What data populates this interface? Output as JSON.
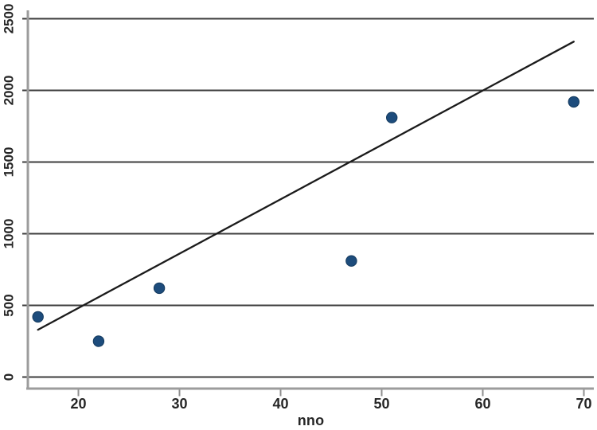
{
  "chart_data": {
    "type": "scatter",
    "title": "",
    "xlabel": "nno",
    "ylabel": "",
    "x_ticks": [
      20,
      30,
      40,
      50,
      60,
      70
    ],
    "y_ticks": [
      0,
      500,
      1000,
      1500,
      2000,
      2500
    ],
    "xlim": [
      15,
      71
    ],
    "ylim": [
      -85,
      2560
    ],
    "grid": "horizontal",
    "legend": "none",
    "points": [
      {
        "x": 16,
        "y": 420
      },
      {
        "x": 22,
        "y": 250
      },
      {
        "x": 28,
        "y": 620
      },
      {
        "x": 47,
        "y": 810
      },
      {
        "x": 51,
        "y": 1810
      },
      {
        "x": 69,
        "y": 1920
      }
    ],
    "fit_line": {
      "kind": "linear-fit",
      "x1": 16,
      "y1": 330,
      "x2": 69,
      "y2": 2340
    },
    "colors": {
      "background": "#ffffff",
      "grid": "#3d3d3d",
      "axis": "#9c9c9c",
      "tick": "#8f8f8f",
      "text": "#262626",
      "fit_line": "#1b1b1b",
      "point_fill": "#1d4c7c",
      "point_edge": "#143a5e"
    }
  }
}
